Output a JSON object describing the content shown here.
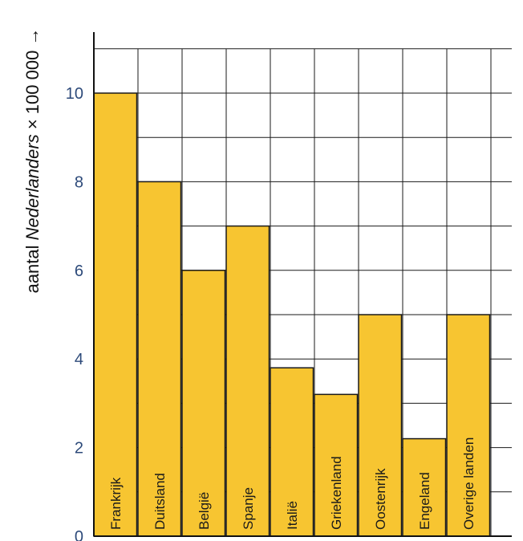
{
  "chart_data": {
    "type": "bar",
    "categories": [
      "Frankrijk",
      "Duitsland",
      "België",
      "Spanje",
      "Italië",
      "Griekenland",
      "Oostenrijk",
      "Engeland",
      "Overige landen"
    ],
    "values": [
      10,
      8,
      6,
      7,
      3.8,
      3.2,
      5,
      2.2,
      5
    ],
    "ylabel": {
      "prefix": "aantal ",
      "italic": "Nederlanders",
      "suffix": " × 100 000 →"
    },
    "yticks": [
      "0",
      "2",
      "4",
      "6",
      "8",
      "10"
    ],
    "ylim": [
      0,
      11
    ],
    "grid": true,
    "bar_color": "#f7c531",
    "bar_edge_color": "#1a1a1a",
    "grid_color": "#1a1a1a",
    "tick_color": "#2d4a7a"
  }
}
